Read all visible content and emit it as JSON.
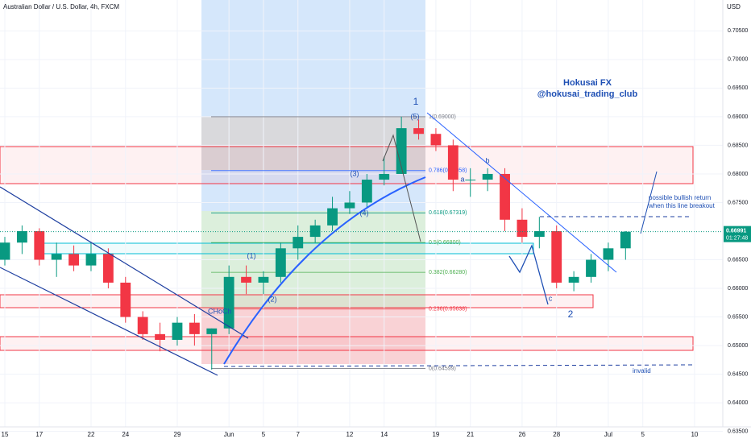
{
  "chart_data": {
    "type": "candlestick",
    "title": "Australian Dollar / U.S. Dollar, 4h, FXCM",
    "currency": "USD",
    "x": [
      0,
      1,
      2,
      3,
      4,
      5,
      6,
      7,
      8,
      9,
      10,
      11,
      12,
      13,
      14,
      15,
      16,
      17,
      18,
      19,
      20,
      21,
      22,
      23,
      24,
      25,
      26,
      27,
      28,
      29,
      30,
      31,
      32,
      33,
      34,
      35,
      36
    ],
    "open": [
      0.665,
      0.668,
      0.67,
      0.665,
      0.666,
      0.664,
      0.666,
      0.661,
      0.655,
      0.652,
      0.651,
      0.654,
      0.652,
      0.653,
      0.662,
      0.661,
      0.662,
      0.667,
      0.669,
      0.671,
      0.674,
      0.675,
      0.679,
      0.68,
      0.688,
      0.687,
      0.685,
      0.679,
      0.679,
      0.68,
      0.672,
      0.669,
      0.67,
      0.661,
      0.662,
      0.665,
      0.667
    ],
    "high": [
      0.669,
      0.671,
      0.6705,
      0.668,
      0.6675,
      0.668,
      0.667,
      0.662,
      0.656,
      0.654,
      0.655,
      0.6555,
      0.653,
      0.664,
      0.664,
      0.663,
      0.668,
      0.671,
      0.672,
      0.676,
      0.677,
      0.68,
      0.683,
      0.69,
      0.6895,
      0.688,
      0.686,
      0.681,
      0.681,
      0.681,
      0.674,
      0.6725,
      0.671,
      0.663,
      0.666,
      0.668,
      0.67
    ],
    "low": [
      0.664,
      0.666,
      0.664,
      0.662,
      0.663,
      0.663,
      0.66,
      0.654,
      0.651,
      0.649,
      0.65,
      0.65,
      0.6458,
      0.652,
      0.659,
      0.659,
      0.661,
      0.665,
      0.668,
      0.67,
      0.673,
      0.674,
      0.678,
      0.68,
      0.686,
      0.684,
      0.677,
      0.676,
      0.677,
      0.67,
      0.668,
      0.667,
      0.66,
      0.6595,
      0.661,
      0.663,
      0.665
    ],
    "close": [
      0.668,
      0.67,
      0.665,
      0.666,
      0.664,
      0.666,
      0.661,
      0.655,
      0.652,
      0.651,
      0.654,
      0.652,
      0.653,
      0.662,
      0.661,
      0.662,
      0.667,
      0.669,
      0.671,
      0.674,
      0.675,
      0.679,
      0.68,
      0.688,
      0.687,
      0.685,
      0.679,
      0.679,
      0.68,
      0.672,
      0.669,
      0.67,
      0.661,
      0.662,
      0.665,
      0.667,
      0.6699
    ],
    "up_color": "#089981",
    "down_color": "#f23645",
    "xlim": [
      -0.28,
      41.64
    ],
    "ylim": [
      0.6372,
      0.7104
    ],
    "xticks": [
      {
        "value": 0,
        "label": "15"
      },
      {
        "value": 2,
        "label": "17"
      },
      {
        "value": 5,
        "label": "22"
      },
      {
        "value": 7,
        "label": "24"
      },
      {
        "value": 10,
        "label": "29"
      },
      {
        "value": 13,
        "label": "Jun"
      },
      {
        "value": 15,
        "label": "5"
      },
      {
        "value": 17,
        "label": "7"
      },
      {
        "value": 20,
        "label": "12"
      },
      {
        "value": 22,
        "label": "14"
      },
      {
        "value": 25,
        "label": "19"
      },
      {
        "value": 27,
        "label": "21"
      },
      {
        "value": 30,
        "label": "26"
      },
      {
        "value": 32,
        "label": "28"
      },
      {
        "value": 35,
        "label": "Jul"
      },
      {
        "value": 37,
        "label": "5"
      },
      {
        "value": 40,
        "label": "10"
      }
    ],
    "yticks": [
      {
        "value": 0.705,
        "label": "0.70500"
      },
      {
        "value": 0.7,
        "label": "0.70000"
      },
      {
        "value": 0.695,
        "label": "0.69500"
      },
      {
        "value": 0.69,
        "label": "0.69000"
      },
      {
        "value": 0.685,
        "label": "0.68500"
      },
      {
        "value": 0.68,
        "label": "0.68000"
      },
      {
        "value": 0.675,
        "label": "0.67500"
      },
      {
        "value": 0.665,
        "label": "0.66500"
      },
      {
        "value": 0.66,
        "label": "0.66000"
      },
      {
        "value": 0.655,
        "label": "0.65500"
      },
      {
        "value": 0.65,
        "label": "0.65000"
      },
      {
        "value": 0.645,
        "label": "0.64500"
      },
      {
        "value": 0.64,
        "label": "0.64000"
      },
      {
        "value": 0.635,
        "label": "0.63500"
      }
    ],
    "last_price": 0.66991,
    "countdown": "01:27:48",
    "fib_levels": [
      {
        "value": 0.69,
        "label": "1(0.69000)",
        "color": "#787b86"
      },
      {
        "value": 0.68058,
        "label": "0.786(0.68058)",
        "color": "#2962ff"
      },
      {
        "value": 0.67319,
        "label": "0.618(0.67319)",
        "color": "#089981"
      },
      {
        "value": 0.668,
        "label": "0.5(0.66800)",
        "color": "#4caf50"
      },
      {
        "value": 0.6628,
        "label": "0.382(0.66280)",
        "color": "#4caf50"
      },
      {
        "value": 0.65638,
        "label": "0.236(0.65638)",
        "color": "#f23645"
      },
      {
        "value": 0.64599,
        "label": "0(0.64599)",
        "color": "#787b86"
      }
    ],
    "annotations": [
      "Hokusai FX",
      "@hokusai_trading_club",
      "1",
      "(5)",
      "(3)",
      "(4)",
      "(1)",
      "(2)",
      "2",
      "a",
      "b",
      "c",
      "CHoCh",
      "possible bullish return",
      "when this line breakout",
      "invalid"
    ]
  }
}
